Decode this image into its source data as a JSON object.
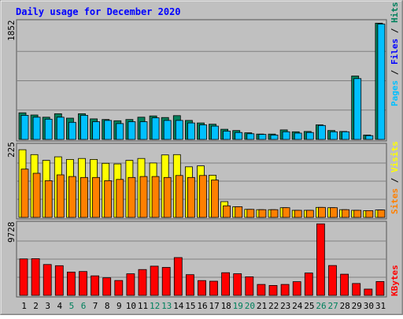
{
  "chart_data": {
    "type": "bar",
    "title": "Daily usage for December 2020",
    "categories": [
      "1",
      "2",
      "3",
      "4",
      "5",
      "6",
      "7",
      "8",
      "9",
      "10",
      "11",
      "12",
      "13",
      "14",
      "15",
      "16",
      "17",
      "18",
      "19",
      "20",
      "21",
      "22",
      "23",
      "24",
      "25",
      "26",
      "27",
      "28",
      "29",
      "30",
      "31"
    ],
    "weekend_days": [
      "5",
      "6",
      "12",
      "13",
      "19",
      "20",
      "26",
      "27"
    ],
    "panels": [
      {
        "name": "top",
        "ymax": 1852,
        "ymax_label": "1852",
        "gridlines": 3,
        "legend": [
          "Pages",
          "Files",
          "Hits"
        ],
        "series": [
          {
            "name": "Hits",
            "color": "#00805c",
            "values": [
              420,
              385,
              350,
              405,
              335,
              405,
              325,
              315,
              295,
              315,
              350,
              370,
              345,
              375,
              300,
              260,
              240,
              160,
              140,
              105,
              85,
              85,
              150,
              120,
              125,
              230,
              140,
              125,
              1000,
              70,
              1835
            ]
          },
          {
            "name": "Files",
            "color": "#00c0ff",
            "values": [
              380,
              350,
              320,
              350,
              270,
              380,
              280,
              300,
              250,
              280,
              280,
              340,
              300,
              300,
              260,
              230,
              210,
              130,
              110,
              90,
              80,
              70,
              120,
              100,
              110,
              220,
              120,
              120,
              960,
              60,
              1820
            ]
          },
          {
            "name": "Pages",
            "color": "#00c0ff",
            "values": [
              0,
              0,
              0,
              0,
              0,
              0,
              0,
              0,
              0,
              0,
              0,
              0,
              0,
              0,
              0,
              0,
              0,
              0,
              0,
              0,
              0,
              0,
              0,
              0,
              0,
              0,
              0,
              0,
              0,
              0,
              0
            ]
          }
        ]
      },
      {
        "name": "middle",
        "ymax": 225,
        "ymax_label": "225",
        "gridlines": 3,
        "legend": [
          "Sites",
          "Visits"
        ],
        "series": [
          {
            "name": "Visits",
            "color": "#ffff00",
            "values": [
              210,
              195,
              177,
              188,
              180,
              183,
              180,
              168,
              166,
              177,
              183,
              169,
              194,
              195,
              157,
              160,
              131,
              49,
              33,
              25,
              24,
              24,
              30,
              22,
              22,
              31,
              30,
              24,
              22,
              21,
              23
            ]
          },
          {
            "name": "Sites",
            "color": "#ff8000",
            "values": [
              150,
              137,
              114,
              132,
              127,
              124,
              124,
              114,
              118,
              124,
              127,
              127,
              124,
              130,
              124,
              130,
              116,
              36,
              33,
              25,
              24,
              24,
              30,
              22,
              22,
              31,
              30,
              24,
              22,
              21,
              23
            ]
          }
        ]
      },
      {
        "name": "bottom",
        "ymax": 9728,
        "ymax_label": "9728",
        "gridlines": 3,
        "legend": [
          "KBytes"
        ],
        "series": [
          {
            "name": "KBytes",
            "color": "#ff0000",
            "values": [
              4900,
              4930,
              4140,
              3990,
              3130,
              3200,
              2620,
              2360,
              2000,
              2900,
              3470,
              3920,
              3750,
              5080,
              2780,
              1990,
              1900,
              3050,
              2910,
              2500,
              1470,
              1330,
              1470,
              1840,
              3000,
              9600,
              4010,
              2840,
              1600,
              850,
              1860
            ]
          }
        ]
      }
    ]
  }
}
